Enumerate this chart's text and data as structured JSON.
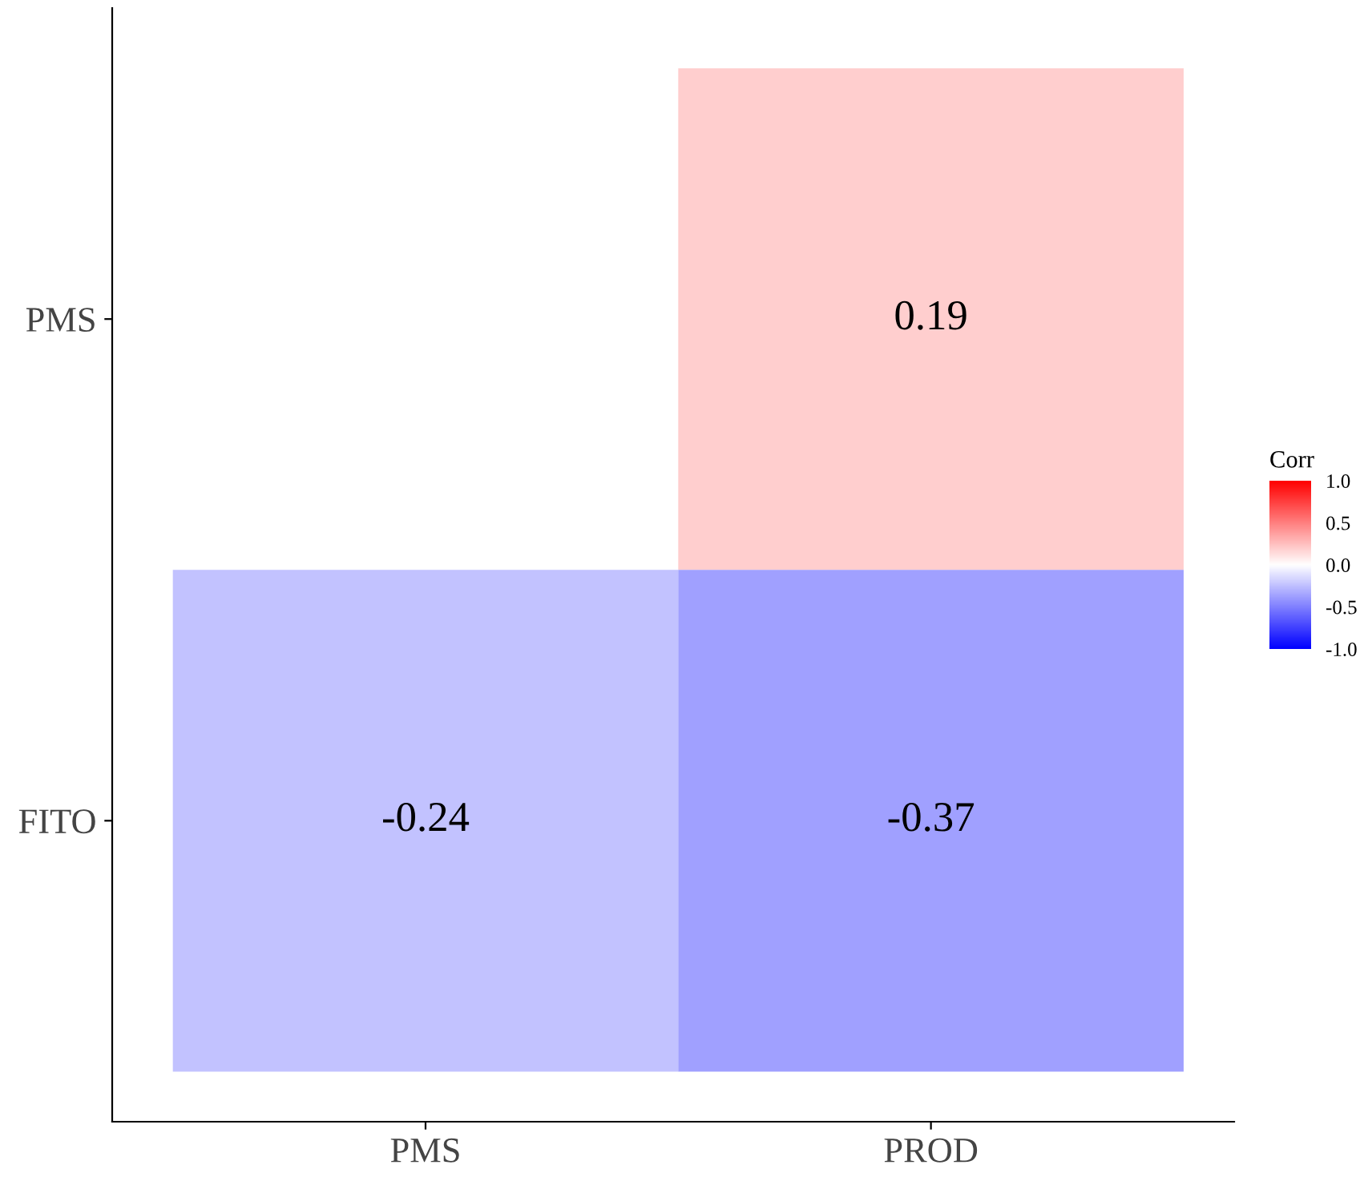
{
  "chart_data": {
    "type": "heatmap",
    "categories": [
      "PMS",
      "PROD"
    ],
    "y_categories": [
      "PMS",
      "FITO"
    ],
    "cells": [
      [
        null,
        0.19
      ],
      [
        -0.24,
        -0.37
      ]
    ],
    "clabel": "Corr",
    "clim": [
      -1,
      1
    ],
    "cticks": [
      {
        "value": -1,
        "label": "-1.0"
      },
      {
        "value": -0.5,
        "label": "-0.5"
      },
      {
        "value": 0,
        "label": "0.0"
      },
      {
        "value": 0.5,
        "label": "0.5"
      },
      {
        "value": 1,
        "label": "1.0"
      }
    ],
    "data_labels": true,
    "grid": false
  }
}
